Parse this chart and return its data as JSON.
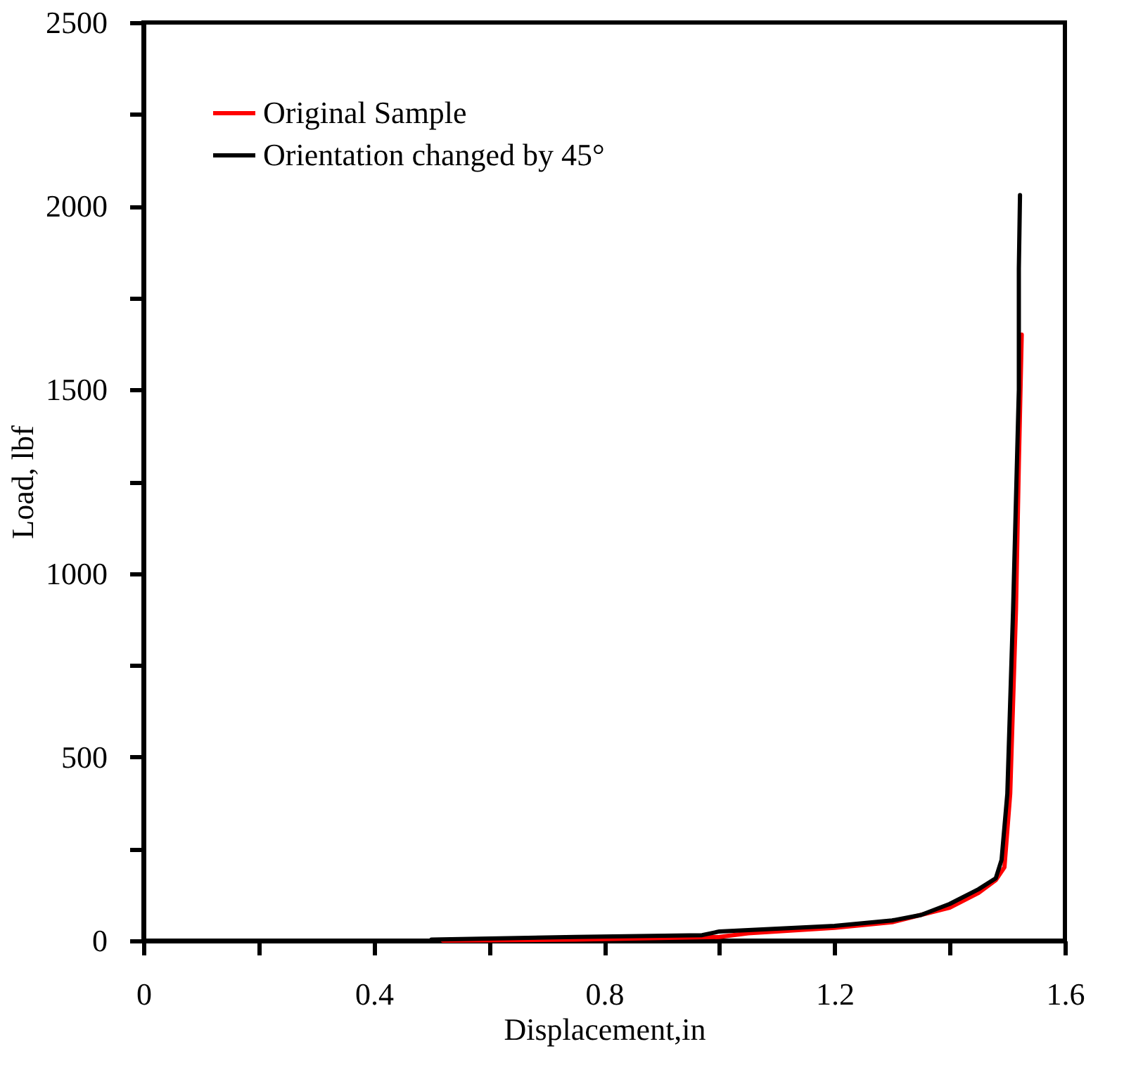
{
  "chart_data": {
    "type": "line",
    "xlabel": "Displacement,in",
    "ylabel": "Load, lbf",
    "series": [
      {
        "name": "Original Sample",
        "color": "#ff0000",
        "x": [
          0.52,
          0.75,
          1.0,
          1.05,
          1.2,
          1.3,
          1.4,
          1.45,
          1.48,
          1.495,
          1.505,
          1.515,
          1.52,
          1.525
        ],
        "values": [
          0,
          3,
          10,
          20,
          35,
          50,
          90,
          130,
          165,
          200,
          400,
          900,
          1300,
          1650
        ]
      },
      {
        "name": "Orientation changed by 45°",
        "color": "#000000",
        "x": [
          0.5,
          0.75,
          0.97,
          1.0,
          1.2,
          1.3,
          1.35,
          1.4,
          1.45,
          1.48,
          1.49,
          1.5,
          1.51,
          1.52,
          1.52,
          1.522
        ],
        "values": [
          3,
          10,
          15,
          25,
          40,
          55,
          70,
          100,
          140,
          170,
          220,
          400,
          900,
          1500,
          1830,
          2030
        ]
      }
    ],
    "xlim": [
      0,
      1.6
    ],
    "ylim": [
      0,
      2500
    ],
    "xticks": [
      0,
      {
        "value": 0.2,
        "label": null
      },
      0.4,
      {
        "value": 0.6,
        "label": null
      },
      0.8,
      {
        "value": 1.0,
        "label": null
      },
      1.2,
      {
        "value": 1.4,
        "label": null
      },
      1.6
    ],
    "yticks": [
      0,
      {
        "value": 250,
        "label": null
      },
      500,
      {
        "value": 750,
        "label": null
      },
      1000,
      {
        "value": 1250,
        "label": null
      },
      1500,
      {
        "value": 1750,
        "label": null
      },
      2000,
      {
        "value": 2250,
        "label": null
      },
      2500
    ],
    "grid": false,
    "legend": "top left",
    "line_style": "solid",
    "marker": "none"
  }
}
